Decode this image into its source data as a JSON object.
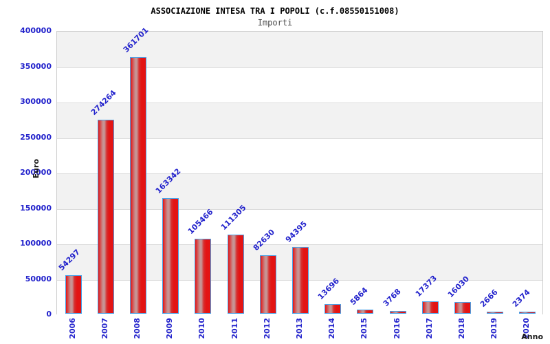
{
  "header": {
    "title": "ASSOCIAZIONE INTESA TRA I POPOLI (c.f.08550151008)",
    "subtitle": "Importi"
  },
  "chart_data": {
    "type": "bar",
    "title": "ASSOCIAZIONE INTESA TRA I POPOLI (c.f.08550151008)",
    "subtitle": "Importi",
    "xlabel": "Anno",
    "ylabel": "Euro",
    "categories": [
      "2006",
      "2007",
      "2008",
      "2009",
      "2010",
      "2011",
      "2012",
      "2013",
      "2014",
      "2015",
      "2016",
      "2017",
      "2018",
      "2019",
      "2020"
    ],
    "values": [
      54297,
      274264,
      361701,
      163342,
      105466,
      111305,
      82630,
      94395,
      13696,
      5864,
      3768,
      17373,
      16030,
      2666,
      2374
    ],
    "ylim": [
      0,
      400000
    ],
    "yticks": [
      0,
      50000,
      100000,
      150000,
      200000,
      250000,
      300000,
      350000,
      400000
    ],
    "grid": "horizontal-bands-alternating",
    "legend": "none",
    "bar_label_rotation_deg": -45,
    "xtick_rotation_deg": -90,
    "colors": {
      "bar_fill": "#e31414",
      "bar_highlight": "#c79494",
      "bar_border": "#4aa2e8",
      "tick_label": "#2323cc",
      "band_gray": "#f2f2f2",
      "band_white": "#ffffff",
      "gridline": "#dcdcdc",
      "plot_border": "#cccccc",
      "title": "#000000",
      "subtitle": "#4a4a4a",
      "axis_title": "#1a1a1a"
    }
  }
}
